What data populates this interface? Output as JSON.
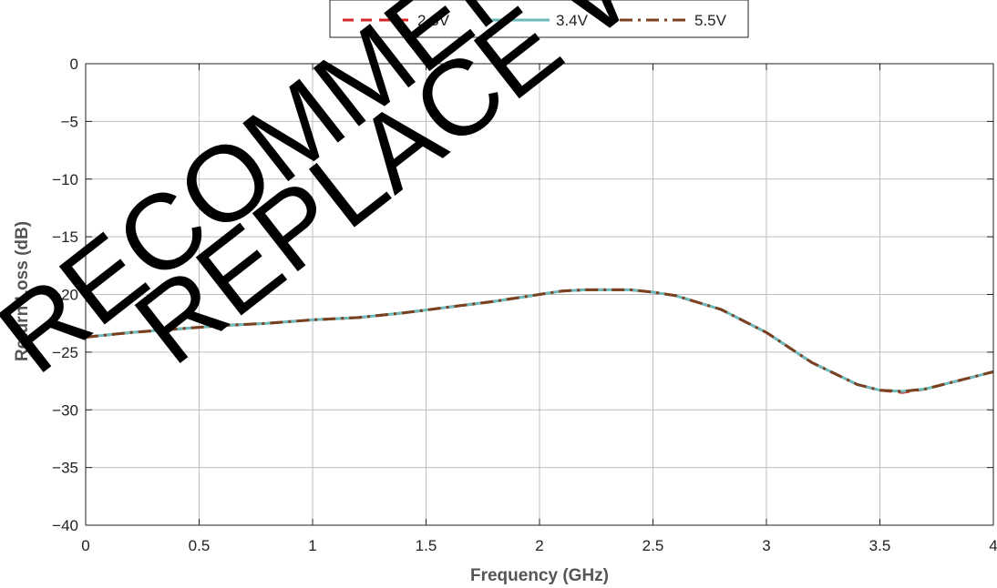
{
  "chart_data": {
    "type": "line",
    "title": "",
    "xlabel": "Frequency (GHz)",
    "ylabel": "Return Loss (dB)",
    "xlim": [
      0,
      4
    ],
    "ylim": [
      -40,
      0
    ],
    "xticks": [
      0,
      0.5,
      1,
      1.5,
      2,
      2.5,
      3,
      3.5,
      4
    ],
    "xtick_labels": [
      "0",
      "0.5",
      "1",
      "1.5",
      "2",
      "2.5",
      "3",
      "3.5",
      "4"
    ],
    "yticks": [
      0,
      -5,
      -10,
      -15,
      -20,
      -25,
      -30,
      -35,
      -40
    ],
    "ytick_labels": [
      "0",
      "−5",
      "−10",
      "−15",
      "−20",
      "−25",
      "−30",
      "−35",
      "−40"
    ],
    "grid": true,
    "legend_position": "top-center",
    "x": [
      0,
      0.2,
      0.4,
      0.6,
      0.8,
      1.0,
      1.2,
      1.4,
      1.6,
      1.8,
      2.0,
      2.1,
      2.2,
      2.3,
      2.4,
      2.5,
      2.6,
      2.8,
      3.0,
      3.2,
      3.4,
      3.5,
      3.6,
      3.7,
      3.8,
      3.9,
      4.0
    ],
    "series": [
      {
        "name": "2.3V",
        "color": "#d62728",
        "dash": "dashed",
        "values": [
          -23.7,
          -23.3,
          -23.0,
          -22.7,
          -22.5,
          -22.2,
          -22.0,
          -21.6,
          -21.1,
          -20.6,
          -20.0,
          -19.7,
          -19.6,
          -19.6,
          -19.6,
          -19.8,
          -20.1,
          -21.3,
          -23.3,
          -25.9,
          -27.8,
          -28.3,
          -28.5,
          -28.2,
          -27.7,
          -27.2,
          -26.7
        ]
      },
      {
        "name": "3.4V",
        "color": "#6bbbbb",
        "dash": "solid",
        "values": [
          -23.7,
          -23.3,
          -23.0,
          -22.7,
          -22.5,
          -22.2,
          -22.0,
          -21.6,
          -21.1,
          -20.6,
          -20.0,
          -19.7,
          -19.6,
          -19.6,
          -19.6,
          -19.8,
          -20.1,
          -21.3,
          -23.3,
          -25.9,
          -27.8,
          -28.3,
          -28.4,
          -28.2,
          -27.7,
          -27.2,
          -26.7
        ]
      },
      {
        "name": "5.5V",
        "color": "#7b4020",
        "dash": "dash-dot",
        "values": [
          -23.7,
          -23.3,
          -23.0,
          -22.7,
          -22.5,
          -22.2,
          -22.0,
          -21.6,
          -21.1,
          -20.6,
          -20.0,
          -19.7,
          -19.6,
          -19.6,
          -19.6,
          -19.8,
          -20.1,
          -21.3,
          -23.3,
          -25.9,
          -27.8,
          -28.3,
          -28.4,
          -28.2,
          -27.7,
          -27.2,
          -26.7
        ]
      }
    ]
  },
  "watermark": {
    "line1": "RECOMMENDED",
    "line2": "REPLACE W"
  },
  "colors": {
    "grid": "#bdbdbd",
    "axis": "#222222",
    "background": "#ffffff"
  }
}
